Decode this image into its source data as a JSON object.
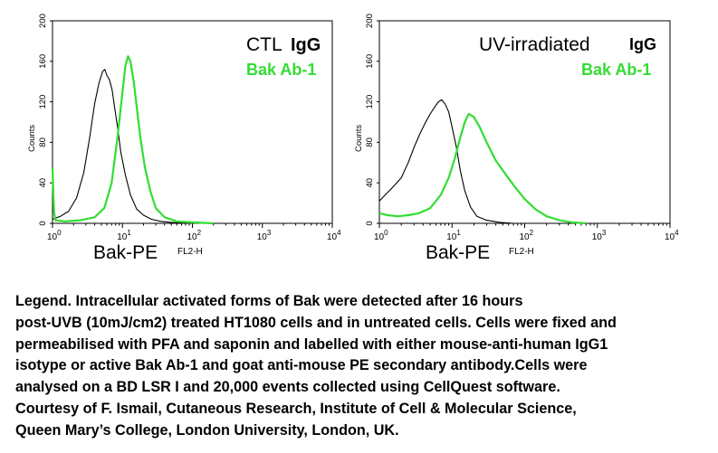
{
  "chart_data": [
    {
      "type": "line",
      "title": "",
      "annotation_lines": [
        {
          "text": "CTL ",
          "color": "#000000"
        },
        {
          "text": "IgG",
          "color": "#000000"
        },
        {
          "text": "Bak Ab-1",
          "color": "#33dd33"
        }
      ],
      "xlabel_main": "Bak-PE",
      "xlabel_channel": "FL2-H",
      "ylabel": "Counts",
      "x_scale": "log",
      "xlim": [
        1,
        10000
      ],
      "ylim": [
        0,
        200
      ],
      "x_ticks": [
        {
          "value": 1,
          "base": "10",
          "exp": "0"
        },
        {
          "value": 10,
          "base": "10",
          "exp": "1"
        },
        {
          "value": 100,
          "base": "10",
          "exp": "2"
        },
        {
          "value": 1000,
          "base": "10",
          "exp": "3"
        },
        {
          "value": 10000,
          "base": "10",
          "exp": "4"
        }
      ],
      "y_ticks": [
        "0",
        "40",
        "80",
        "120",
        "160",
        "200"
      ],
      "grid": false,
      "series": [
        {
          "color": "#000000",
          "x": [
            1,
            1.3,
            1.7,
            2.2,
            2.8,
            3.4,
            4.0,
            4.6,
            5.2,
            5.6,
            6.0,
            6.5,
            7.1,
            7.7,
            8.5,
            9.5,
            11,
            13,
            16,
            20,
            26,
            35,
            50,
            80
          ],
          "y": [
            4,
            7,
            12,
            25,
            50,
            85,
            118,
            138,
            150,
            152,
            146,
            142,
            132,
            115,
            95,
            70,
            48,
            28,
            14,
            8,
            4,
            2,
            1,
            0
          ]
        },
        {
          "color": "#33dd33",
          "x": [
            1,
            1.05,
            1.1,
            1.5,
            2.5,
            4,
            5.5,
            7,
            8.5,
            10,
            11,
            12,
            13,
            14.5,
            16,
            18,
            21,
            25,
            30,
            40,
            60,
            100,
            200
          ],
          "y": [
            55,
            12,
            3,
            2,
            3,
            6,
            15,
            40,
            85,
            130,
            155,
            165,
            160,
            140,
            115,
            85,
            55,
            32,
            15,
            6,
            2,
            1,
            0
          ]
        }
      ]
    },
    {
      "type": "line",
      "title": "",
      "annotation_lines": [
        {
          "text": "UV-irradiated",
          "color": "#000000"
        },
        {
          "text": "IgG",
          "color": "#000000"
        },
        {
          "text": "Bak Ab-1",
          "color": "#33dd33"
        }
      ],
      "xlabel_main": "Bak-PE",
      "xlabel_channel": "FL2-H",
      "ylabel": "Counts",
      "x_scale": "log",
      "xlim": [
        1,
        10000
      ],
      "ylim": [
        0,
        200
      ],
      "x_ticks": [
        {
          "value": 1,
          "base": "10",
          "exp": "0"
        },
        {
          "value": 10,
          "base": "10",
          "exp": "1"
        },
        {
          "value": 100,
          "base": "10",
          "exp": "2"
        },
        {
          "value": 1000,
          "base": "10",
          "exp": "3"
        },
        {
          "value": 10000,
          "base": "10",
          "exp": "4"
        }
      ],
      "y_ticks": [
        "0",
        "40",
        "80",
        "120",
        "160",
        "200"
      ],
      "grid": false,
      "series": [
        {
          "color": "#000000",
          "x": [
            1,
            1.2,
            1.5,
            2,
            2.5,
            3,
            3.6,
            4.2,
            5,
            5.8,
            6.5,
            7.2,
            8,
            9,
            10,
            11.5,
            13,
            15,
            18,
            22,
            30,
            45,
            70,
            120
          ],
          "y": [
            22,
            28,
            35,
            45,
            60,
            75,
            88,
            98,
            108,
            115,
            120,
            122,
            118,
            110,
            95,
            75,
            52,
            32,
            16,
            7,
            3,
            1,
            0,
            0
          ]
        },
        {
          "color": "#33dd33",
          "x": [
            1,
            1.3,
            1.8,
            2.5,
            3.5,
            5,
            7,
            9,
            11,
            13,
            15,
            17,
            20,
            24,
            30,
            40,
            55,
            75,
            100,
            140,
            200,
            300,
            450,
            700
          ],
          "y": [
            10,
            8,
            7,
            8,
            10,
            15,
            28,
            45,
            65,
            85,
            100,
            108,
            105,
            95,
            80,
            62,
            48,
            35,
            24,
            14,
            7,
            3,
            1,
            0
          ]
        }
      ]
    }
  ],
  "legend": {
    "lines": [
      "Legend. Intracellular activated forms of Bak were detected after 16 hours",
      "post-UVB (10mJ/cm2) treated HT1080 cells and in untreated cells. Cells were fixed and",
      "permeabilised with PFA and saponin and labelled with either mouse-anti-human IgG1",
      "isotype or active Bak Ab-1 and goat anti-mouse PE secondary antibody.Cells were",
      "analysed on a BD LSR I and 20,000 events collected using CellQuest software.",
      "Courtesy of  F. Ismail, Cutaneous Research, Institute of Cell & Molecular Science,",
      "Queen Mary’s College, London University, London, UK."
    ]
  }
}
